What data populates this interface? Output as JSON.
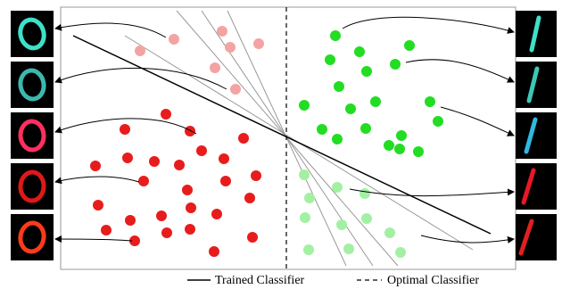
{
  "legend": {
    "items": [
      "Trained Classifier",
      "Optimal Classifier"
    ]
  }
}
